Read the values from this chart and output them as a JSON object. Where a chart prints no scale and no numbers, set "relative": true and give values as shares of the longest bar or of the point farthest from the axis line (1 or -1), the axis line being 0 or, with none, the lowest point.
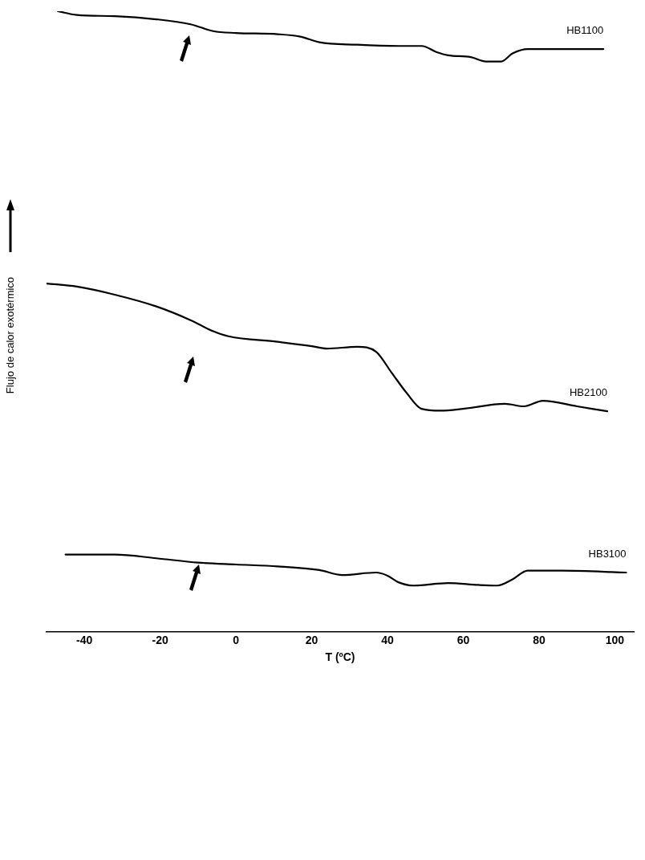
{
  "chart_data": {
    "type": "line",
    "relative": true,
    "xlabel": "T (ºC)",
    "ylabel": "Flujo de calor exotérmico",
    "xlim": [
      -50,
      105
    ],
    "xticks": [
      -40,
      -20,
      0,
      20,
      40,
      60,
      80,
      100
    ],
    "grid": false,
    "legend": false,
    "marker": "none",
    "line_style": "solid",
    "series": [
      {
        "name": "HB1100",
        "color": "#000000",
        "x": [
          -47,
          -42,
          -32,
          -21,
          -12,
          -6,
          0,
          11,
          17,
          22,
          32,
          43,
          49,
          53,
          56,
          62,
          66,
          70,
          73,
          77,
          86,
          97
        ],
        "values": [
          1.0,
          0.994,
          0.992,
          0.987,
          0.979,
          0.968,
          0.965,
          0.963,
          0.959,
          0.95,
          0.946,
          0.944,
          0.944,
          0.934,
          0.929,
          0.926,
          0.919,
          0.919,
          0.932,
          0.939,
          0.939,
          0.939
        ]
      },
      {
        "name": "HB2100",
        "color": "#000000",
        "x": [
          -50,
          -42,
          -32,
          -21,
          -12,
          -6,
          -2,
          11,
          20,
          24,
          32,
          37,
          41,
          45,
          49,
          54,
          60,
          71,
          76,
          81,
          90,
          98
        ],
        "values": [
          0.561,
          0.556,
          0.543,
          0.524,
          0.502,
          0.484,
          0.476,
          0.467,
          0.46,
          0.456,
          0.459,
          0.451,
          0.418,
          0.385,
          0.359,
          0.356,
          0.359,
          0.367,
          0.363,
          0.372,
          0.363,
          0.355
        ]
      },
      {
        "name": "HB3100",
        "color": "#000000",
        "x": [
          -45,
          -32,
          -21,
          -10,
          0,
          11,
          22,
          28,
          37,
          40,
          43,
          47,
          56,
          64,
          69,
          73,
          77,
          86,
          103
        ],
        "values": [
          0.124,
          0.124,
          0.118,
          0.111,
          0.108,
          0.105,
          0.099,
          0.091,
          0.095,
          0.09,
          0.079,
          0.074,
          0.078,
          0.075,
          0.074,
          0.084,
          0.098,
          0.098,
          0.095
        ]
      }
    ]
  }
}
